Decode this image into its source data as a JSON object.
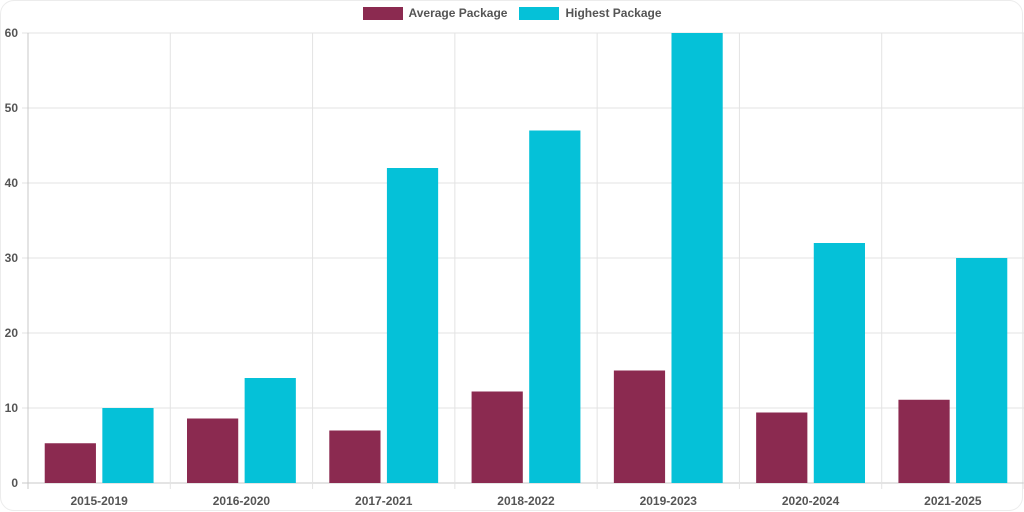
{
  "chart_data": {
    "type": "bar",
    "categories": [
      "2015-2019",
      "2016-2020",
      "2017-2021",
      "2018-2022",
      "2019-2023",
      "2020-2024",
      "2021-2025"
    ],
    "series": [
      {
        "name": "Average Package",
        "color": "#8b2a50",
        "values": [
          5.3,
          8.6,
          7.0,
          12.2,
          15.0,
          9.4,
          11.1
        ]
      },
      {
        "name": "Highest Package",
        "color": "#05c1d8",
        "values": [
          10,
          14,
          42,
          47,
          60,
          32,
          30
        ]
      }
    ],
    "ylim": [
      0,
      60
    ],
    "yticks": [
      0,
      10,
      20,
      30,
      40,
      50,
      60
    ],
    "grid": true,
    "legend_position": "top-center"
  }
}
